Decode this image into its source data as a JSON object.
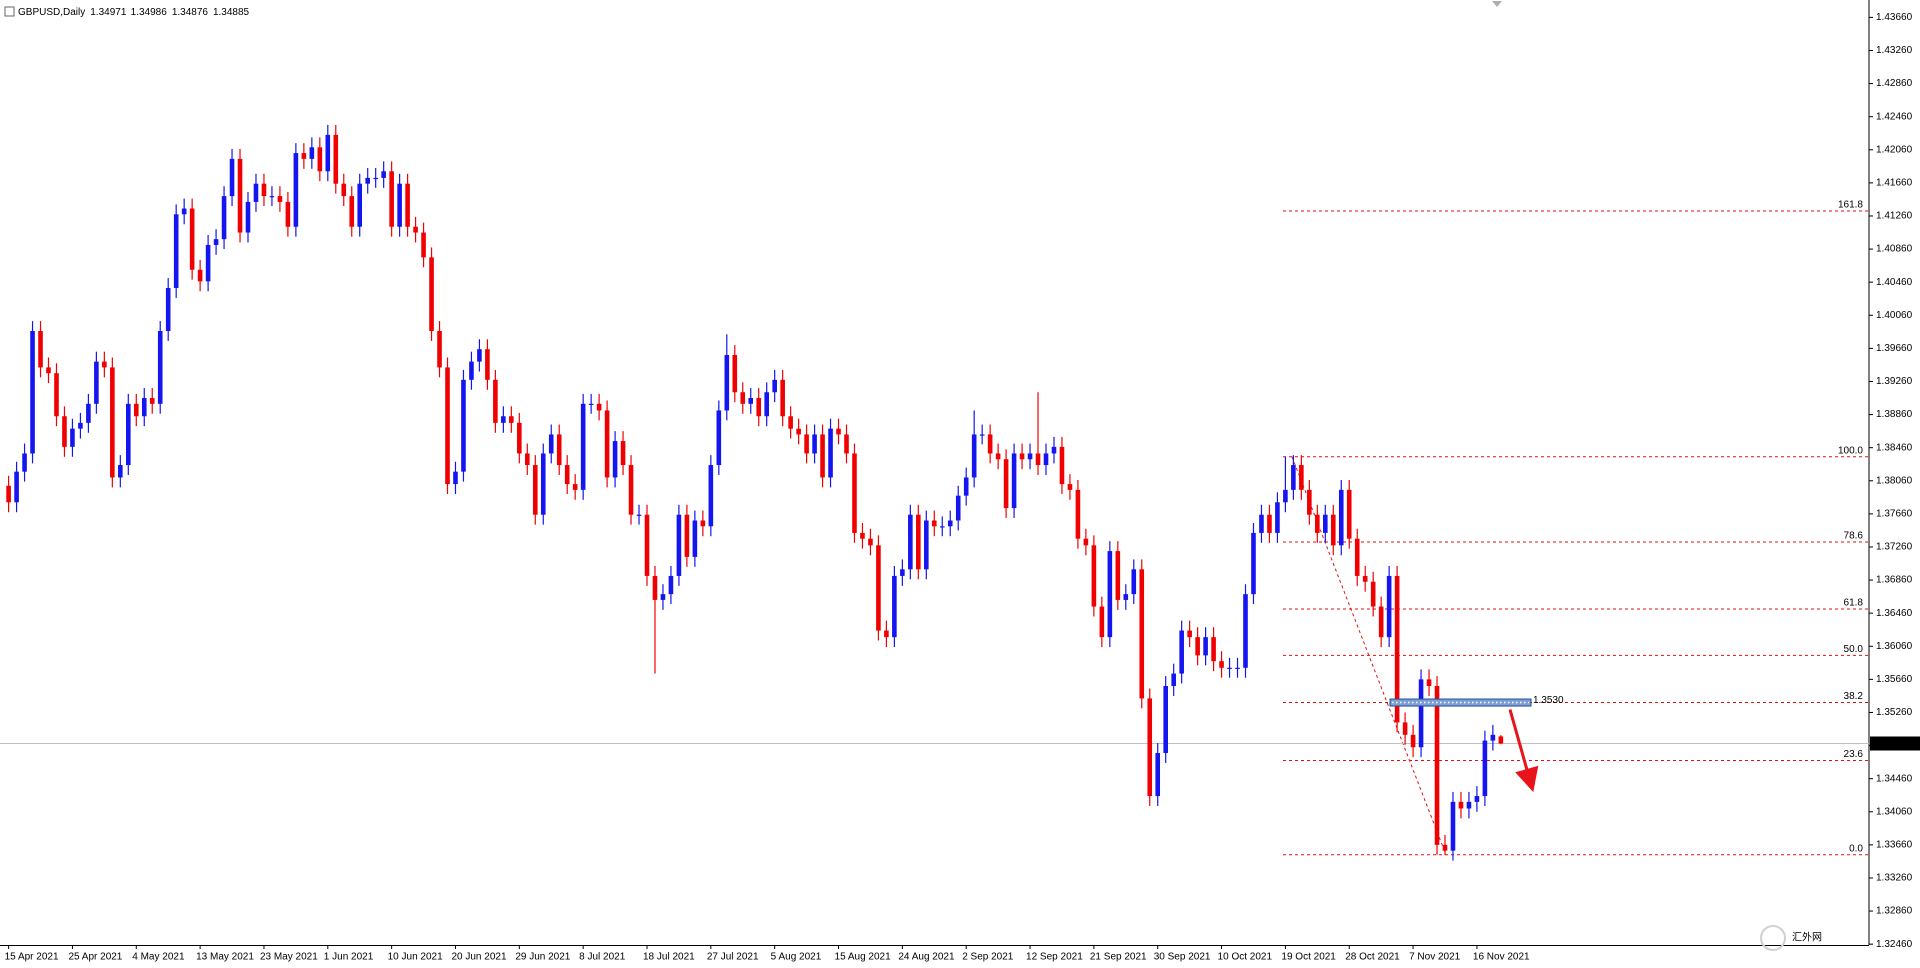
{
  "chart_data": {
    "type": "candlestick",
    "title": "GBPUSD,Daily",
    "up_color": "#1515f0",
    "down_color": "#f00000",
    "last_price_color": "#c0c0c0",
    "fib_color": "#e01010",
    "grid": false,
    "ylim": [
      1.3245,
      1.4387
    ],
    "yticks": [
      {
        "value": 1.4366,
        "label": "1.43660"
      },
      {
        "value": 1.4326,
        "label": "1.43260"
      },
      {
        "value": 1.4286,
        "label": "1.42860"
      },
      {
        "value": 1.4246,
        "label": "1.42460"
      },
      {
        "value": 1.4206,
        "label": "1.42060"
      },
      {
        "value": 1.4166,
        "label": "1.41660"
      },
      {
        "value": 1.4126,
        "label": "1.41260"
      },
      {
        "value": 1.4086,
        "label": "1.40860"
      },
      {
        "value": 1.4046,
        "label": "1.40460"
      },
      {
        "value": 1.4006,
        "label": "1.40060"
      },
      {
        "value": 1.3966,
        "label": "1.39660"
      },
      {
        "value": 1.3926,
        "label": "1.39260"
      },
      {
        "value": 1.3886,
        "label": "1.38860"
      },
      {
        "value": 1.3846,
        "label": "1.38460"
      },
      {
        "value": 1.3806,
        "label": "1.38060"
      },
      {
        "value": 1.3766,
        "label": "1.37660"
      },
      {
        "value": 1.3726,
        "label": "1.37260"
      },
      {
        "value": 1.3686,
        "label": "1.36860"
      },
      {
        "value": 1.3646,
        "label": "1.36460"
      },
      {
        "value": 1.3606,
        "label": "1.36060"
      },
      {
        "value": 1.3566,
        "label": "1.35660"
      },
      {
        "value": 1.3526,
        "label": "1.35260"
      },
      {
        "value": 1.3486,
        "label": "1.34860"
      },
      {
        "value": 1.3446,
        "label": "1.34460"
      },
      {
        "value": 1.3406,
        "label": "1.34060"
      },
      {
        "value": 1.3366,
        "label": "1.33660"
      },
      {
        "value": 1.3326,
        "label": "1.33260"
      },
      {
        "value": 1.3286,
        "label": "1.32860"
      },
      {
        "value": 1.3246,
        "label": "1.32460"
      }
    ],
    "categories": [
      "15 Apr 2021",
      null,
      null,
      null,
      null,
      null,
      null,
      null,
      "25 Apr 2021",
      null,
      null,
      null,
      null,
      null,
      null,
      null,
      "4 May 2021",
      null,
      null,
      null,
      null,
      null,
      null,
      null,
      "13 May 2021",
      null,
      null,
      null,
      null,
      null,
      null,
      null,
      "23 May 2021",
      null,
      null,
      null,
      null,
      null,
      null,
      null,
      "1 Jun 2021",
      null,
      null,
      null,
      null,
      null,
      null,
      null,
      "10 Jun 2021",
      null,
      null,
      null,
      null,
      null,
      null,
      null,
      "20 Jun 2021",
      null,
      null,
      null,
      null,
      null,
      null,
      null,
      "29 Jun 2021",
      null,
      null,
      null,
      null,
      null,
      null,
      null,
      "8 Jul 2021",
      null,
      null,
      null,
      null,
      null,
      null,
      null,
      "18 Jul 2021",
      null,
      null,
      null,
      null,
      null,
      null,
      null,
      "27 Jul 2021",
      null,
      null,
      null,
      null,
      null,
      null,
      null,
      "5 Aug 2021",
      null,
      null,
      null,
      null,
      null,
      null,
      null,
      "15 Aug 2021",
      null,
      null,
      null,
      null,
      null,
      null,
      null,
      "24 Aug 2021",
      null,
      null,
      null,
      null,
      null,
      null,
      null,
      "2 Sep 2021",
      null,
      null,
      null,
      null,
      null,
      null,
      null,
      "12 Sep 2021",
      null,
      null,
      null,
      null,
      null,
      null,
      null,
      "21 Sep 2021",
      null,
      null,
      null,
      null,
      null,
      null,
      null,
      "30 Sep 2021",
      null,
      null,
      null,
      null,
      null,
      null,
      null,
      "10 Oct 2021",
      null,
      null,
      null,
      null,
      null,
      null,
      null,
      "19 Oct 2021",
      null,
      null,
      null,
      null,
      null,
      null,
      null,
      "28 Oct 2021",
      null,
      null,
      null,
      null,
      null,
      null,
      null,
      "7 Nov 2021",
      null,
      null,
      null,
      null,
      null,
      null,
      null,
      "16 Nov 2021",
      null,
      null,
      null
    ],
    "open": [
      1.38,
      1.378,
      1.3817,
      1.3839,
      1.3987,
      1.3943,
      1.3936,
      1.3884,
      1.3847,
      1.3869,
      1.3876,
      1.3899,
      1.395,
      1.3943,
      1.381,
      1.3825,
      1.3899,
      1.3884,
      1.3906,
      1.3899,
      1.3987,
      1.4039,
      1.4128,
      1.4135,
      1.4061,
      1.4047,
      1.4091,
      1.4098,
      1.415,
      1.4195,
      1.4106,
      1.4143,
      1.4165,
      1.415,
      1.415,
      1.4143,
      1.4113,
      1.4202,
      1.4195,
      1.4209,
      1.418,
      1.4224,
      1.4165,
      1.415,
      1.4113,
      1.4165,
      1.4172,
      1.4172,
      1.418,
      1.4113,
      1.4165,
      1.4113,
      1.4106,
      1.4076,
      1.3987,
      1.3943,
      1.3802,
      1.3817,
      1.3928,
      1.395,
      1.3965,
      1.3928,
      1.3876,
      1.3884,
      1.3876,
      1.3839,
      1.3825,
      1.3765,
      1.3839,
      1.3862,
      1.3825,
      1.3802,
      1.3795,
      1.3899,
      1.3899,
      1.3891,
      1.381,
      1.3854,
      1.3825,
      1.3765,
      1.3765,
      1.3691,
      1.3662,
      1.3669,
      1.3691,
      1.3765,
      1.3714,
      1.3758,
      1.3751,
      1.3825,
      1.3891,
      1.3958,
      1.3913,
      1.3899,
      1.3906,
      1.3884,
      1.3913,
      1.3928,
      1.3884,
      1.3869,
      1.3862,
      1.3839,
      1.3862,
      1.381,
      1.3869,
      1.3862,
      1.3839,
      1.3743,
      1.3736,
      1.3728,
      1.3625,
      1.3617,
      1.3691,
      1.3699,
      1.3765,
      1.3699,
      1.3758,
      1.3751,
      1.3751,
      1.3758,
      1.3788,
      1.381,
      1.3862,
      1.3862,
      1.3839,
      1.3832,
      1.3773,
      1.3839,
      1.3832,
      1.3839,
      1.3825,
      1.3839,
      1.3847,
      1.3802,
      1.3795,
      1.3736,
      1.3728,
      1.3654,
      1.3617,
      1.3721,
      1.3662,
      1.3669,
      1.3699,
      1.3543,
      1.3425,
      1.3477,
      1.3558,
      1.3573,
      1.3625,
      1.3617,
      1.3595,
      1.3617,
      1.3588,
      1.358,
      1.358,
      1.358,
      1.3669,
      1.3743,
      1.3765,
      1.3743,
      1.378,
      1.3795,
      1.3825,
      1.3795,
      1.3765,
      1.3743,
      1.3765,
      1.3728,
      1.3795,
      1.3736,
      1.3691,
      1.3684,
      1.3654,
      1.3617,
      1.3691,
      1.3514,
      1.3499,
      1.3484,
      1.3566,
      1.3558,
      1.3366,
      1.3359,
      1.3418,
      1.341,
      1.3418,
      1.3425,
      1.3492,
      1.34971
    ],
    "high": [
      1.3812,
      1.3829,
      1.3851,
      1.3999,
      1.3999,
      1.3955,
      1.3948,
      1.3896,
      1.3881,
      1.3888,
      1.3911,
      1.3962,
      1.3962,
      1.3955,
      1.3837,
      1.3911,
      1.3911,
      1.3918,
      1.3918,
      1.3999,
      1.4051,
      1.414,
      1.4147,
      1.4147,
      1.4073,
      1.4103,
      1.411,
      1.4162,
      1.4207,
      1.4207,
      1.4155,
      1.4177,
      1.4177,
      1.4162,
      1.4162,
      1.4155,
      1.4214,
      1.4214,
      1.4221,
      1.4221,
      1.4236,
      1.4236,
      1.4177,
      1.4162,
      1.4177,
      1.4184,
      1.4184,
      1.4192,
      1.4192,
      1.4177,
      1.4177,
      1.4125,
      1.4118,
      1.4088,
      1.3999,
      1.3955,
      1.3829,
      1.394,
      1.3962,
      1.3977,
      1.3977,
      1.394,
      1.3896,
      1.3896,
      1.3888,
      1.3851,
      1.3837,
      1.3851,
      1.3874,
      1.3874,
      1.3837,
      1.3814,
      1.3911,
      1.3911,
      1.3911,
      1.3903,
      1.3866,
      1.3866,
      1.3837,
      1.3777,
      1.3777,
      1.3703,
      1.3681,
      1.3703,
      1.3777,
      1.3777,
      1.377,
      1.377,
      1.3837,
      1.3903,
      1.3983,
      1.397,
      1.3925,
      1.3918,
      1.3918,
      1.3925,
      1.394,
      1.394,
      1.3896,
      1.3881,
      1.3874,
      1.3874,
      1.3874,
      1.3881,
      1.3881,
      1.3874,
      1.3851,
      1.3755,
      1.3748,
      1.374,
      1.3637,
      1.3703,
      1.3711,
      1.3777,
      1.3777,
      1.377,
      1.377,
      1.3763,
      1.377,
      1.38,
      1.3822,
      1.3891,
      1.3874,
      1.3874,
      1.3851,
      1.3844,
      1.3851,
      1.3851,
      1.3851,
      1.3913,
      1.3851,
      1.3859,
      1.3859,
      1.3814,
      1.3807,
      1.3748,
      1.374,
      1.3666,
      1.3733,
      1.3733,
      1.3681,
      1.3711,
      1.3711,
      1.3555,
      1.3489,
      1.357,
      1.3585,
      1.3637,
      1.3637,
      1.3629,
      1.3629,
      1.3629,
      1.36,
      1.3592,
      1.3592,
      1.3681,
      1.3755,
      1.3777,
      1.3777,
      1.3792,
      1.3835,
      1.3837,
      1.3837,
      1.3807,
      1.3777,
      1.3777,
      1.3777,
      1.3807,
      1.3807,
      1.3748,
      1.3703,
      1.3696,
      1.3666,
      1.3703,
      1.3703,
      1.3526,
      1.3511,
      1.3578,
      1.3578,
      1.357,
      1.3378,
      1.343,
      1.343,
      1.343,
      1.3437,
      1.3504,
      1.3511,
      1.34986
    ],
    "low": [
      1.3768,
      1.3768,
      1.3805,
      1.3827,
      1.3931,
      1.3924,
      1.3872,
      1.3835,
      1.3835,
      1.3857,
      1.3864,
      1.3887,
      1.3931,
      1.3798,
      1.3798,
      1.3813,
      1.3872,
      1.3872,
      1.3887,
      1.3887,
      1.3975,
      1.4027,
      1.4116,
      1.4049,
      1.4035,
      1.4035,
      1.4079,
      1.4086,
      1.4138,
      1.4094,
      1.4094,
      1.4131,
      1.4138,
      1.4138,
      1.4131,
      1.4101,
      1.4101,
      1.4183,
      1.4183,
      1.4168,
      1.4168,
      1.4153,
      1.4138,
      1.4101,
      1.4101,
      1.4153,
      1.416,
      1.416,
      1.4101,
      1.4101,
      1.4101,
      1.4094,
      1.4064,
      1.3975,
      1.3931,
      1.379,
      1.379,
      1.3805,
      1.3916,
      1.3938,
      1.3916,
      1.3864,
      1.3864,
      1.3864,
      1.3827,
      1.3813,
      1.3753,
      1.3753,
      1.3827,
      1.3813,
      1.379,
      1.3783,
      1.3783,
      1.3887,
      1.3879,
      1.3798,
      1.3798,
      1.3813,
      1.3753,
      1.3753,
      1.3679,
      1.3573,
      1.365,
      1.3657,
      1.3679,
      1.3702,
      1.3702,
      1.3739,
      1.3739,
      1.3813,
      1.3879,
      1.3901,
      1.3887,
      1.3887,
      1.3872,
      1.3872,
      1.3901,
      1.3872,
      1.3857,
      1.385,
      1.3827,
      1.3827,
      1.3798,
      1.3798,
      1.385,
      1.3827,
      1.3731,
      1.3724,
      1.3716,
      1.3613,
      1.3605,
      1.3605,
      1.3679,
      1.3687,
      1.3687,
      1.3687,
      1.3739,
      1.3739,
      1.3739,
      1.3746,
      1.3776,
      1.3798,
      1.385,
      1.3827,
      1.382,
      1.3761,
      1.3761,
      1.382,
      1.382,
      1.3813,
      1.3813,
      1.3827,
      1.379,
      1.3783,
      1.3724,
      1.3716,
      1.3642,
      1.3605,
      1.3605,
      1.365,
      1.365,
      1.3657,
      1.3531,
      1.3413,
      1.3413,
      1.3465,
      1.3546,
      1.3561,
      1.3605,
      1.3583,
      1.3583,
      1.3576,
      1.3568,
      1.3568,
      1.3568,
      1.3568,
      1.3657,
      1.3731,
      1.3731,
      1.3731,
      1.3768,
      1.3783,
      1.3783,
      1.3753,
      1.3731,
      1.3731,
      1.3716,
      1.3716,
      1.3724,
      1.3679,
      1.3672,
      1.3642,
      1.3605,
      1.3605,
      1.3502,
      1.3487,
      1.3472,
      1.3472,
      1.3546,
      1.3354,
      1.3354,
      1.3347,
      1.3398,
      1.3398,
      1.3406,
      1.3413,
      1.348,
      1.34876
    ],
    "close": [
      1.378,
      1.3817,
      1.3839,
      1.3987,
      1.3943,
      1.3936,
      1.3884,
      1.3847,
      1.3869,
      1.3876,
      1.3899,
      1.395,
      1.3943,
      1.381,
      1.3825,
      1.3899,
      1.3884,
      1.3906,
      1.3899,
      1.3987,
      1.4039,
      1.4128,
      1.4135,
      1.4061,
      1.4047,
      1.4091,
      1.4098,
      1.415,
      1.4195,
      1.4106,
      1.4143,
      1.4165,
      1.415,
      1.415,
      1.4143,
      1.4113,
      1.4202,
      1.4195,
      1.4209,
      1.418,
      1.4224,
      1.4165,
      1.415,
      1.4113,
      1.4165,
      1.4172,
      1.4172,
      1.418,
      1.4113,
      1.4165,
      1.4113,
      1.4106,
      1.4076,
      1.3987,
      1.3943,
      1.3802,
      1.3817,
      1.3928,
      1.395,
      1.3965,
      1.3928,
      1.3876,
      1.3884,
      1.3876,
      1.3839,
      1.3825,
      1.3765,
      1.3839,
      1.3862,
      1.3825,
      1.3802,
      1.3795,
      1.3899,
      1.3899,
      1.3891,
      1.381,
      1.3854,
      1.3825,
      1.3765,
      1.3765,
      1.3691,
      1.3662,
      1.3669,
      1.3691,
      1.3765,
      1.3714,
      1.3758,
      1.3751,
      1.3825,
      1.3891,
      1.3958,
      1.3913,
      1.3899,
      1.3906,
      1.3884,
      1.3913,
      1.3928,
      1.3884,
      1.3869,
      1.3862,
      1.3839,
      1.3862,
      1.381,
      1.3869,
      1.3862,
      1.3839,
      1.3743,
      1.3736,
      1.3728,
      1.3625,
      1.3617,
      1.3691,
      1.3699,
      1.3765,
      1.3699,
      1.3758,
      1.3751,
      1.3751,
      1.3758,
      1.3788,
      1.381,
      1.3862,
      1.3862,
      1.3839,
      1.3832,
      1.3773,
      1.3839,
      1.3832,
      1.3839,
      1.3825,
      1.3839,
      1.3847,
      1.3802,
      1.3795,
      1.3736,
      1.3728,
      1.3654,
      1.3617,
      1.3721,
      1.3662,
      1.3669,
      1.3699,
      1.3543,
      1.3425,
      1.3477,
      1.3558,
      1.3573,
      1.3625,
      1.3617,
      1.3595,
      1.3617,
      1.3588,
      1.358,
      1.358,
      1.358,
      1.3669,
      1.3743,
      1.3765,
      1.3743,
      1.378,
      1.3795,
      1.3825,
      1.3795,
      1.3765,
      1.3743,
      1.3765,
      1.3728,
      1.3795,
      1.3736,
      1.3691,
      1.3684,
      1.3654,
      1.3617,
      1.3691,
      1.3514,
      1.3499,
      1.3484,
      1.3566,
      1.3558,
      1.3366,
      1.3359,
      1.3418,
      1.341,
      1.3418,
      1.3425,
      1.3492,
      1.3499,
      1.34885
    ],
    "fib_levels": [
      {
        "label": "161.8",
        "price": 1.4132
      },
      {
        "label": "100.0",
        "price": 1.3835
      },
      {
        "label": "78.6",
        "price": 1.3732
      },
      {
        "label": "61.8",
        "price": 1.3651
      },
      {
        "label": "50.0",
        "price": 1.3595
      },
      {
        "label": "38.2",
        "price": 1.3538
      },
      {
        "label": "23.6",
        "price": 1.3468
      },
      {
        "label": "0.0",
        "price": 1.3354
      }
    ],
    "annotation": "1.3530",
    "watermark": "汇外网"
  }
}
